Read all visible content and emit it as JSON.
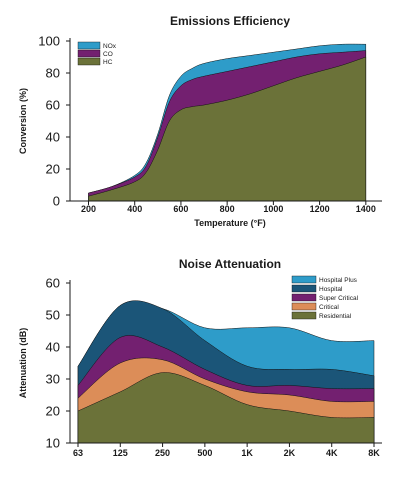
{
  "chart_data": [
    {
      "type": "area",
      "title": "Emissions Efficiency",
      "xlabel": "Temperature (°F)",
      "ylabel": "Conversion (%)",
      "x": [
        200,
        300,
        400,
        450,
        500,
        550,
        600,
        650,
        700,
        800,
        900,
        1000,
        1100,
        1200,
        1300,
        1400
      ],
      "xticks": [
        "200",
        "400",
        "600",
        "800",
        "1000",
        "1200",
        "1400"
      ],
      "xlim": [
        120,
        1470
      ],
      "ylim": [
        0,
        100
      ],
      "yticks": [
        "0",
        "20",
        "40",
        "60",
        "80",
        "100"
      ],
      "legend_position": "top-left",
      "series": [
        {
          "name": "NOx",
          "color": "#2e9cc9",
          "values": [
            5,
            9,
            16,
            24,
            42,
            66,
            78,
            83,
            86,
            89,
            91,
            93,
            95,
            97,
            98,
            98
          ]
        },
        {
          "name": "CO",
          "color": "#732070",
          "values": [
            5,
            9,
            15,
            22,
            40,
            62,
            72,
            76,
            78,
            81,
            84,
            87,
            90,
            92,
            93,
            94
          ]
        },
        {
          "name": "HC",
          "color": "#6b7239",
          "values": [
            3,
            7,
            12,
            18,
            32,
            50,
            57,
            59,
            60,
            63,
            67,
            72,
            77,
            81,
            85,
            90
          ]
        }
      ]
    },
    {
      "type": "area",
      "title": "Noise Attenuation",
      "xlabel": "",
      "ylabel": "Attenuation (dB)",
      "categories": [
        "63",
        "125",
        "250",
        "500",
        "1K",
        "2K",
        "4K",
        "8K"
      ],
      "ylim": [
        10,
        60
      ],
      "yticks": [
        "10",
        "20",
        "30",
        "40",
        "50",
        "60"
      ],
      "legend_position": "top-right",
      "series": [
        {
          "name": "Hospital Plus",
          "color": "#2e9cc9",
          "values": [
            34,
            53,
            52,
            46,
            46,
            46,
            42,
            42
          ]
        },
        {
          "name": "Hospital",
          "color": "#1b5578",
          "values": [
            34,
            53,
            52,
            42,
            34,
            33,
            33,
            31
          ]
        },
        {
          "name": "Super Critical",
          "color": "#732070",
          "values": [
            28,
            43,
            40,
            33,
            28,
            28,
            27,
            27
          ]
        },
        {
          "name": "Critical",
          "color": "#dc8d58",
          "values": [
            24,
            35,
            36,
            30,
            26,
            25,
            23,
            23
          ]
        },
        {
          "name": "Residential",
          "color": "#6b7239",
          "values": [
            20,
            26,
            32,
            28,
            22,
            20,
            18,
            18
          ]
        }
      ]
    }
  ]
}
